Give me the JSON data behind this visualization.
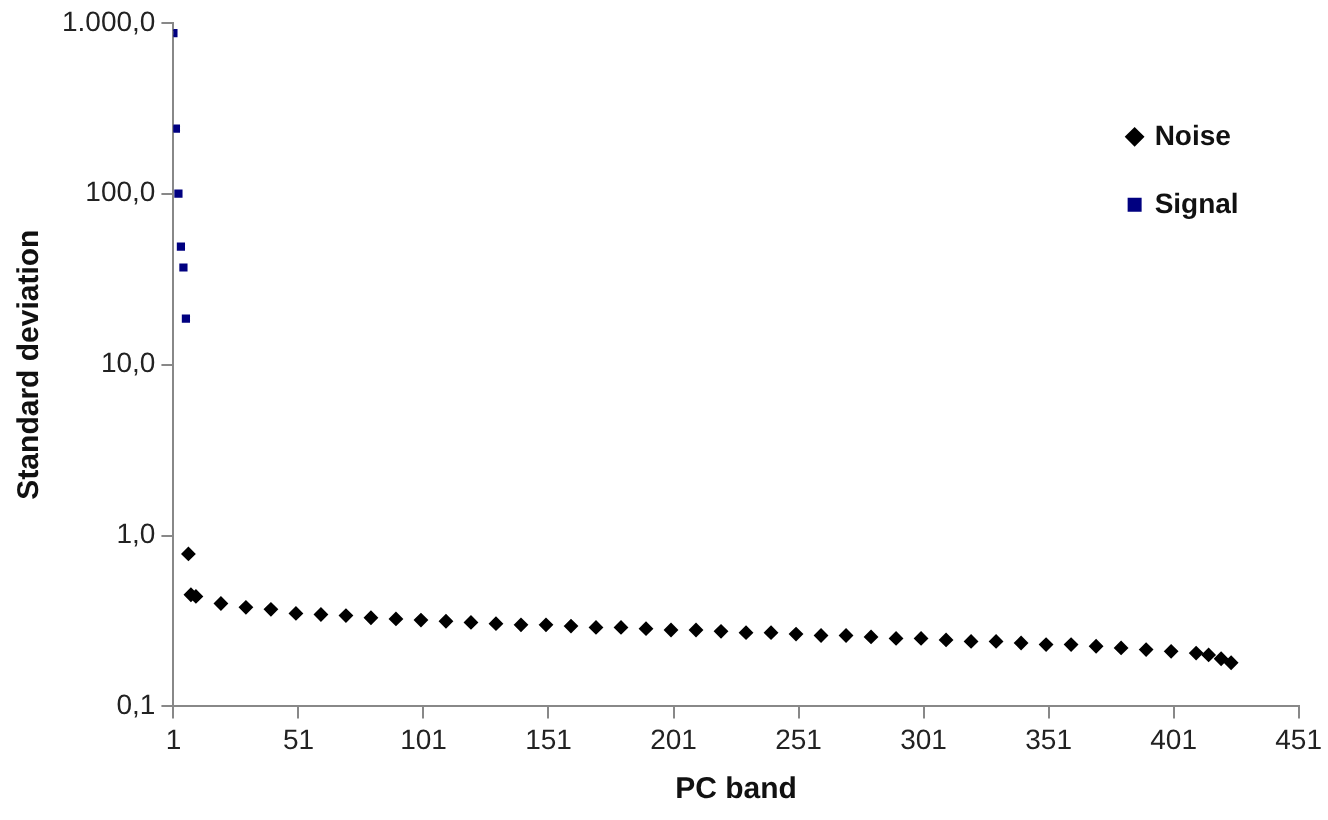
{
  "chart_data": {
    "type": "scatter",
    "xlabel": "PC band",
    "ylabel": "Standard deviation",
    "log": "y",
    "legend": "top right",
    "grid": false,
    "xlim": [
      1,
      451
    ],
    "xticks": [
      1,
      51,
      101,
      151,
      201,
      251,
      301,
      351,
      401,
      451
    ],
    "ylim": [
      0.1,
      1000
    ],
    "yticks": [
      {
        "value": 0.1,
        "label": "0,1"
      },
      {
        "value": 1,
        "label": "1,0"
      },
      {
        "value": 10,
        "label": "10,0"
      },
      {
        "value": 100,
        "label": "100,0"
      },
      {
        "value": 1000,
        "label": "1.000,0"
      }
    ],
    "series": [
      {
        "name": "Noise",
        "color": "#000000",
        "marker": "diamond",
        "x": [
          7,
          8,
          10,
          20,
          30,
          40,
          50,
          60,
          70,
          80,
          90,
          100,
          110,
          120,
          130,
          140,
          150,
          160,
          170,
          180,
          190,
          200,
          210,
          220,
          230,
          240,
          250,
          260,
          270,
          280,
          290,
          300,
          310,
          320,
          330,
          340,
          350,
          360,
          370,
          380,
          390,
          400,
          410,
          415,
          420,
          424
        ],
        "values": [
          0.78,
          0.45,
          0.44,
          0.4,
          0.38,
          0.37,
          0.35,
          0.345,
          0.34,
          0.33,
          0.325,
          0.32,
          0.315,
          0.31,
          0.305,
          0.3,
          0.3,
          0.295,
          0.29,
          0.29,
          0.285,
          0.28,
          0.28,
          0.275,
          0.27,
          0.27,
          0.265,
          0.26,
          0.26,
          0.255,
          0.25,
          0.25,
          0.245,
          0.24,
          0.24,
          0.235,
          0.23,
          0.23,
          0.225,
          0.22,
          0.215,
          0.21,
          0.205,
          0.2,
          0.19,
          0.18
        ]
      },
      {
        "name": "Signal",
        "color": "#000080",
        "marker": "square",
        "x": [
          1,
          2,
          3,
          4,
          5,
          6
        ],
        "values": [
          870,
          240,
          100,
          49,
          37,
          18.6
        ]
      }
    ]
  }
}
